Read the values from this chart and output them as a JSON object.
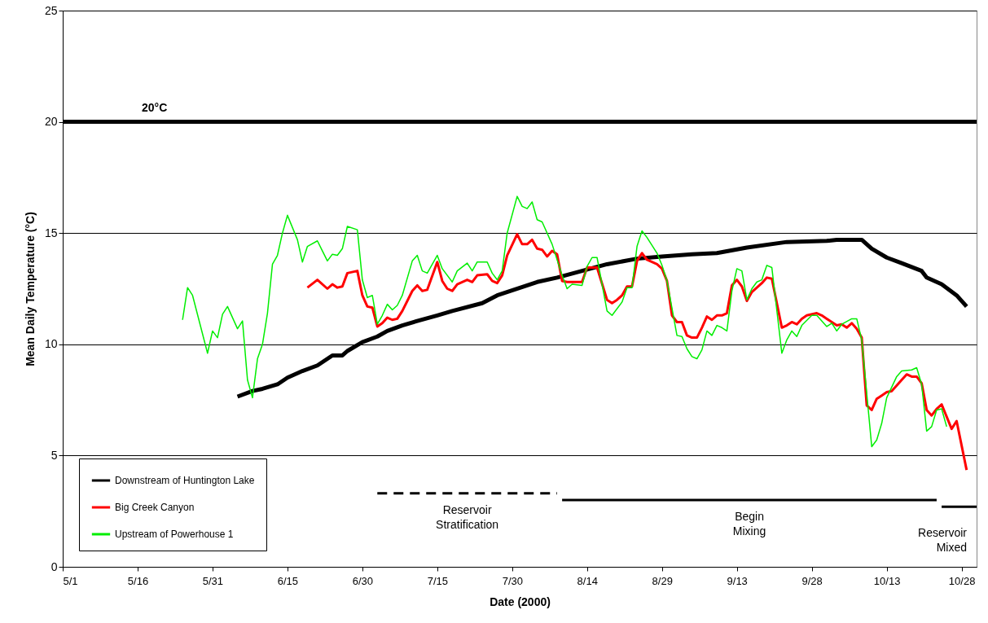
{
  "chart_data": {
    "type": "line",
    "xlabel": "Date (2000)",
    "ylabel": "Mean Daily Temperature (°C)",
    "xlim": [
      "2000-05-01",
      "2000-10-31"
    ],
    "ylim": [
      0,
      25
    ],
    "yticks": [
      0,
      5,
      10,
      15,
      20,
      25
    ],
    "xticks": [
      {
        "value": "2000-05-01",
        "label": "5/1"
      },
      {
        "value": "2000-05-16",
        "label": "5/16"
      },
      {
        "value": "2000-05-31",
        "label": "5/31"
      },
      {
        "value": "2000-06-15",
        "label": "6/15"
      },
      {
        "value": "2000-06-30",
        "label": "6/30"
      },
      {
        "value": "2000-07-15",
        "label": "7/15"
      },
      {
        "value": "2000-07-30",
        "label": "7/30"
      },
      {
        "value": "2000-08-14",
        "label": "8/14"
      },
      {
        "value": "2000-08-29",
        "label": "8/29"
      },
      {
        "value": "2000-09-13",
        "label": "9/13"
      },
      {
        "value": "2000-09-28",
        "label": "9/28"
      },
      {
        "value": "2000-10-13",
        "label": "10/13"
      },
      {
        "value": "2000-10-28",
        "label": "10/28"
      }
    ],
    "grid": "y",
    "legend": "bottom left",
    "ref_lines": [
      {
        "axis": "y",
        "value": 20,
        "label": "20°C",
        "color": "#000000"
      }
    ],
    "annotations": [
      "Reservoir\nStratification",
      "Begin\nMixing",
      "Reservoir\nMixed"
    ],
    "series": [
      {
        "name": "Downstream of Huntington Lake",
        "color": "#000000",
        "x": [
          "2000-06-05",
          "2000-06-08",
          "2000-06-10",
          "2000-06-13",
          "2000-06-15",
          "2000-06-18",
          "2000-06-21",
          "2000-06-24",
          "2000-06-26",
          "2000-06-27",
          "2000-06-30",
          "2000-07-03",
          "2000-07-05",
          "2000-07-08",
          "2000-07-11",
          "2000-07-15",
          "2000-07-18",
          "2000-07-24",
          "2000-07-27",
          "2000-08-04",
          "2000-08-08",
          "2000-08-13",
          "2000-08-18",
          "2000-08-24",
          "2000-08-29",
          "2000-09-04",
          "2000-09-09",
          "2000-09-15",
          "2000-09-23",
          "2000-10-01",
          "2000-10-03",
          "2000-10-08",
          "2000-10-10",
          "2000-10-13",
          "2000-10-16",
          "2000-10-20",
          "2000-10-21",
          "2000-10-24",
          "2000-10-27",
          "2000-10-29"
        ],
        "values": [
          7.65,
          7.9,
          8.0,
          8.2,
          8.5,
          8.8,
          9.05,
          9.5,
          9.5,
          9.7,
          10.1,
          10.35,
          10.6,
          10.85,
          11.05,
          11.3,
          11.5,
          11.85,
          12.2,
          12.8,
          13.0,
          13.3,
          13.6,
          13.85,
          13.95,
          14.05,
          14.1,
          14.35,
          14.6,
          14.65,
          14.7,
          14.7,
          14.3,
          13.9,
          13.65,
          13.3,
          13.0,
          12.7,
          12.2,
          11.7
        ]
      },
      {
        "name": "Big Creek Canyon",
        "color": "#ff0000",
        "x": [
          "2000-06-19",
          "2000-06-21",
          "2000-06-23",
          "2000-06-24",
          "2000-06-25",
          "2000-06-26",
          "2000-06-27",
          "2000-06-29",
          "2000-06-30",
          "2000-07-01",
          "2000-07-02",
          "2000-07-03",
          "2000-07-04",
          "2000-07-05",
          "2000-07-06",
          "2000-07-07",
          "2000-07-08",
          "2000-07-10",
          "2000-07-11",
          "2000-07-12",
          "2000-07-13",
          "2000-07-15",
          "2000-07-16",
          "2000-07-17",
          "2000-07-18",
          "2000-07-19",
          "2000-07-21",
          "2000-07-22",
          "2000-07-23",
          "2000-07-25",
          "2000-07-26",
          "2000-07-27",
          "2000-07-28",
          "2000-07-29",
          "2000-07-31",
          "2000-08-01",
          "2000-08-02",
          "2000-08-03",
          "2000-08-04",
          "2000-08-05",
          "2000-08-06",
          "2000-08-07",
          "2000-08-08",
          "2000-08-09",
          "2000-08-10",
          "2000-08-13",
          "2000-08-14",
          "2000-08-16",
          "2000-08-18",
          "2000-08-19",
          "2000-08-20",
          "2000-08-21",
          "2000-08-22",
          "2000-08-23",
          "2000-08-24",
          "2000-08-25",
          "2000-08-26",
          "2000-08-28",
          "2000-08-29",
          "2000-08-30",
          "2000-08-31",
          "2000-09-01",
          "2000-09-02",
          "2000-09-03",
          "2000-09-04",
          "2000-09-05",
          "2000-09-06",
          "2000-09-07",
          "2000-09-08",
          "2000-09-09",
          "2000-09-10",
          "2000-09-11",
          "2000-09-12",
          "2000-09-13",
          "2000-09-14",
          "2000-09-15",
          "2000-09-16",
          "2000-09-17",
          "2000-09-18",
          "2000-09-19",
          "2000-09-20",
          "2000-09-22",
          "2000-09-23",
          "2000-09-24",
          "2000-09-25",
          "2000-09-26",
          "2000-09-27",
          "2000-09-29",
          "2000-09-30",
          "2000-10-01",
          "2000-10-02",
          "2000-10-03",
          "2000-10-04",
          "2000-10-05",
          "2000-10-06",
          "2000-10-07",
          "2000-10-08",
          "2000-10-09",
          "2000-10-10",
          "2000-10-11",
          "2000-10-12",
          "2000-10-13",
          "2000-10-14",
          "2000-10-16",
          "2000-10-17",
          "2000-10-18",
          "2000-10-19",
          "2000-10-20",
          "2000-10-21",
          "2000-10-22",
          "2000-10-23",
          "2000-10-24",
          "2000-10-25",
          "2000-10-26",
          "2000-10-27",
          "2000-10-29"
        ],
        "values": [
          12.55,
          12.9,
          12.5,
          12.7,
          12.55,
          12.6,
          13.2,
          13.3,
          12.2,
          11.7,
          11.65,
          10.8,
          10.95,
          11.2,
          11.1,
          11.15,
          11.5,
          12.4,
          12.65,
          12.4,
          12.45,
          13.7,
          12.85,
          12.5,
          12.4,
          12.7,
          12.9,
          12.8,
          13.1,
          13.15,
          12.85,
          12.75,
          13.1,
          14.0,
          14.95,
          14.5,
          14.5,
          14.7,
          14.3,
          14.25,
          13.95,
          14.2,
          14.05,
          12.85,
          12.8,
          12.8,
          13.45,
          13.45,
          12.0,
          11.85,
          12.0,
          12.2,
          12.6,
          12.6,
          13.75,
          14.1,
          13.8,
          13.6,
          13.4,
          12.85,
          11.3,
          11.0,
          11.0,
          10.4,
          10.3,
          10.3,
          10.75,
          11.25,
          11.1,
          11.3,
          11.3,
          11.4,
          12.65,
          12.9,
          12.6,
          11.95,
          12.35,
          12.55,
          12.75,
          13.0,
          12.95,
          10.75,
          10.85,
          11.0,
          10.9,
          11.15,
          11.3,
          11.4,
          11.3,
          11.15,
          11.0,
          10.85,
          10.9,
          10.75,
          10.95,
          10.7,
          10.3,
          7.25,
          7.05,
          7.55,
          7.7,
          7.85,
          7.9,
          8.4,
          8.65,
          8.55,
          8.55,
          8.25,
          7.05,
          6.8,
          7.1,
          7.3,
          6.75,
          6.2,
          6.55,
          4.35
        ]
      },
      {
        "name": "Upstream of Powerhouse 1",
        "color": "#00ee00",
        "x": [
          "2000-05-25",
          "2000-05-26",
          "2000-05-27",
          "2000-05-30",
          "2000-05-31",
          "2000-06-01",
          "2000-06-02",
          "2000-06-03",
          "2000-06-05",
          "2000-06-06",
          "2000-06-07",
          "2000-06-08",
          "2000-06-09",
          "2000-06-10",
          "2000-06-11",
          "2000-06-12",
          "2000-06-13",
          "2000-06-14",
          "2000-06-15",
          "2000-06-17",
          "2000-06-18",
          "2000-06-19",
          "2000-06-21",
          "2000-06-22",
          "2000-06-23",
          "2000-06-24",
          "2000-06-25",
          "2000-06-26",
          "2000-06-27",
          "2000-06-29",
          "2000-06-30",
          "2000-07-01",
          "2000-07-02",
          "2000-07-03",
          "2000-07-04",
          "2000-07-05",
          "2000-07-06",
          "2000-07-07",
          "2000-07-08",
          "2000-07-10",
          "2000-07-11",
          "2000-07-12",
          "2000-07-13",
          "2000-07-15",
          "2000-07-16",
          "2000-07-18",
          "2000-07-19",
          "2000-07-21",
          "2000-07-22",
          "2000-07-23",
          "2000-07-25",
          "2000-07-26",
          "2000-07-27",
          "2000-07-28",
          "2000-07-29",
          "2000-07-31",
          "2000-08-01",
          "2000-08-02",
          "2000-08-03",
          "2000-08-04",
          "2000-08-05",
          "2000-08-07",
          "2000-08-09",
          "2000-08-10",
          "2000-08-11",
          "2000-08-13",
          "2000-08-14",
          "2000-08-15",
          "2000-08-16",
          "2000-08-18",
          "2000-08-19",
          "2000-08-21",
          "2000-08-22",
          "2000-08-23",
          "2000-08-24",
          "2000-08-25",
          "2000-08-26",
          "2000-08-28",
          "2000-08-29",
          "2000-08-30",
          "2000-09-01",
          "2000-09-02",
          "2000-09-03",
          "2000-09-04",
          "2000-09-05",
          "2000-09-06",
          "2000-09-07",
          "2000-09-08",
          "2000-09-09",
          "2000-09-10",
          "2000-09-11",
          "2000-09-12",
          "2000-09-13",
          "2000-09-14",
          "2000-09-15",
          "2000-09-16",
          "2000-09-17",
          "2000-09-18",
          "2000-09-19",
          "2000-09-20",
          "2000-09-22",
          "2000-09-23",
          "2000-09-24",
          "2000-09-25",
          "2000-09-26",
          "2000-09-28",
          "2000-09-29",
          "2000-10-01",
          "2000-10-02",
          "2000-10-03",
          "2000-10-04",
          "2000-10-06",
          "2000-10-07",
          "2000-10-08",
          "2000-10-10",
          "2000-10-11",
          "2000-10-12",
          "2000-10-13",
          "2000-10-15",
          "2000-10-16",
          "2000-10-18",
          "2000-10-19",
          "2000-10-20",
          "2000-10-21",
          "2000-10-22",
          "2000-10-23",
          "2000-10-24",
          "2000-10-25"
        ],
        "values": [
          11.1,
          12.55,
          12.2,
          9.6,
          10.6,
          10.3,
          11.35,
          11.7,
          10.7,
          11.05,
          8.4,
          7.6,
          9.35,
          10.0,
          11.4,
          13.6,
          14.0,
          15.0,
          15.8,
          14.7,
          13.7,
          14.4,
          14.65,
          14.2,
          13.75,
          14.05,
          14.0,
          14.3,
          15.3,
          15.15,
          12.9,
          12.1,
          12.2,
          10.9,
          11.3,
          11.8,
          11.55,
          11.75,
          12.2,
          13.75,
          14.0,
          13.3,
          13.2,
          14.0,
          13.4,
          12.8,
          13.3,
          13.65,
          13.3,
          13.7,
          13.7,
          13.2,
          12.9,
          13.3,
          15.0,
          16.65,
          16.2,
          16.1,
          16.4,
          15.6,
          15.5,
          14.5,
          13.1,
          12.5,
          12.7,
          12.65,
          13.5,
          13.9,
          13.9,
          11.5,
          11.3,
          11.9,
          12.55,
          12.55,
          14.4,
          15.1,
          14.8,
          14.1,
          13.55,
          12.85,
          10.4,
          10.35,
          9.8,
          9.45,
          9.35,
          9.75,
          10.6,
          10.4,
          10.85,
          10.75,
          10.6,
          12.4,
          13.4,
          13.3,
          12.0,
          12.5,
          12.8,
          12.9,
          13.55,
          13.45,
          9.6,
          10.2,
          10.6,
          10.35,
          10.85,
          11.3,
          11.3,
          10.8,
          10.95,
          10.6,
          10.9,
          11.15,
          11.15,
          10.2,
          5.4,
          5.7,
          6.45,
          7.6,
          8.55,
          8.8,
          8.85,
          8.95,
          8.2,
          6.1,
          6.3,
          7.05,
          7.1,
          6.3
        ]
      },
      {
        "color": "#000000",
        "line_style": "dashed",
        "x": [
          "2000-07-03",
          "2000-08-08"
        ],
        "values": [
          3.3,
          3.3
        ]
      },
      {
        "color": "#000000",
        "x": [
          "2000-08-09",
          "2000-10-23"
        ],
        "values": [
          3.0,
          3.0
        ]
      },
      {
        "color": "#000000",
        "x": [
          "2000-10-24",
          "2000-10-31"
        ],
        "values": [
          2.7,
          2.7
        ]
      }
    ]
  }
}
